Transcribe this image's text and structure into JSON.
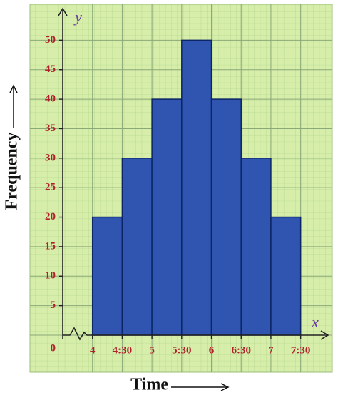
{
  "chart_data": {
    "type": "histogram",
    "x_label": "Time",
    "y_label": "Frequency",
    "x_axis_letter": "x",
    "y_axis_letter": "y",
    "bins": [
      4,
      4.5,
      5,
      5.5,
      6,
      6.5,
      7,
      7.5
    ],
    "values": [
      20,
      30,
      40,
      50,
      40,
      30,
      20
    ],
    "color": "#2f55b0",
    "xlim": [
      3.5,
      7.9
    ],
    "ylim": [
      0,
      55
    ],
    "xticks": [
      4,
      {
        "value": 4.5,
        "label": "4:30"
      },
      5,
      {
        "value": 5.5,
        "label": "5:30"
      },
      6,
      {
        "value": 6.5,
        "label": "6:30"
      },
      7,
      {
        "value": 7.5,
        "label": "7:30"
      }
    ],
    "yticks": [
      0,
      5,
      10,
      15,
      20,
      25,
      30,
      35,
      40,
      45,
      50
    ],
    "grid": true
  }
}
